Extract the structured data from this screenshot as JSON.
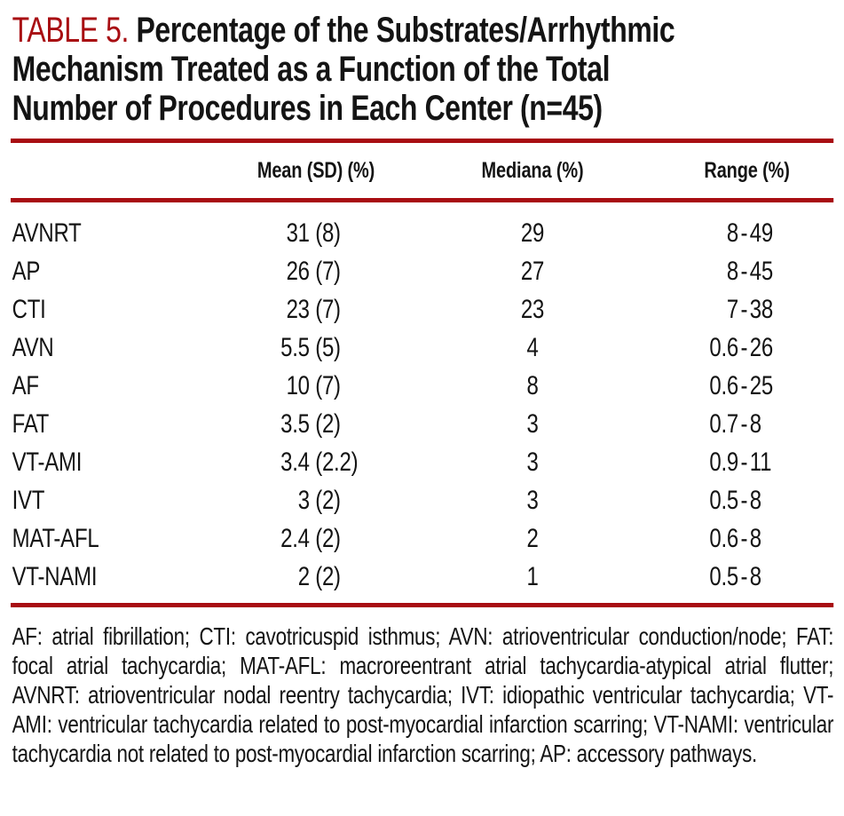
{
  "document": {
    "table_label": "TABLE 5.",
    "title_lines": [
      "Percentage of the Substrates/Arrhythmic",
      "Mechanism Treated as a Function of the Total",
      "Number of Procedures in Each Center (n=45)"
    ],
    "columns": {
      "substrate": "",
      "mean": "Mean (SD) (%)",
      "median": "Mediana (%)",
      "range": "Range (%)"
    },
    "range_separator": "-",
    "rows": [
      {
        "substrate": "AVNRT",
        "mean": "31",
        "sd": "(8)",
        "median": "29",
        "range_min": "8",
        "range_max": "49"
      },
      {
        "substrate": "AP",
        "mean": "26",
        "sd": "(7)",
        "median": "27",
        "range_min": "8",
        "range_max": "45"
      },
      {
        "substrate": "CTI",
        "mean": "23",
        "sd": "(7)",
        "median": "23",
        "range_min": "7",
        "range_max": "38"
      },
      {
        "substrate": "AVN",
        "mean": "5.5",
        "sd": "(5)",
        "median": "4",
        "range_min": "0.6",
        "range_max": "26"
      },
      {
        "substrate": "AF",
        "mean": "10",
        "sd": "(7)",
        "median": "8",
        "range_min": "0.6",
        "range_max": "25"
      },
      {
        "substrate": "FAT",
        "mean": "3.5",
        "sd": "(2)",
        "median": "3",
        "range_min": "0.7",
        "range_max": "8"
      },
      {
        "substrate": "VT-AMI",
        "mean": "3.4",
        "sd": "(2.2)",
        "median": "3",
        "range_min": "0.9",
        "range_max": "11"
      },
      {
        "substrate": "IVT",
        "mean": "3",
        "sd": "(2)",
        "median": "3",
        "range_min": "0.5",
        "range_max": "8"
      },
      {
        "substrate": "MAT-AFL",
        "mean": "2.4",
        "sd": "(2)",
        "median": "2",
        "range_min": "0.6",
        "range_max": "8"
      },
      {
        "substrate": "VT-NAMI",
        "mean": "2",
        "sd": "(2)",
        "median": "1",
        "range_min": "0.5",
        "range_max": "8"
      }
    ],
    "footnote": "AF: atrial fibrillation; CTI: cavotricuspid isthmus; AVN: atrioventricular conduction/node; FAT: focal atrial tachycardia; MAT-AFL: macroreentrant atrial tachycardia-atypical atrial flutter; AVNRT: atrioventricular nodal reentry tachycardia; IVT: idiopathic ventricular tachycardia; VT-AMI: ventricular tachycardia related to post-myocardial infarction scarring; VT-NAMI: ventricular tachycardia not related to post-myocardial infarction scarring; AP: accessory pathways.",
    "colors": {
      "accent_red": "#A80D12",
      "text": "#141414"
    }
  }
}
